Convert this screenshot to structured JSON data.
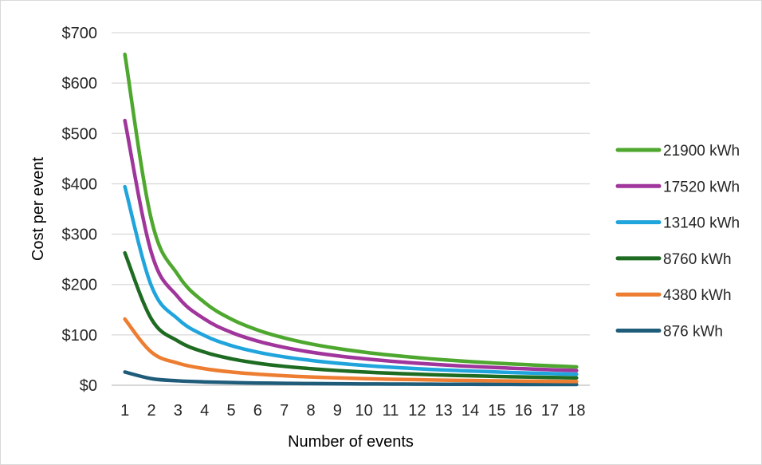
{
  "chart_data": {
    "type": "line",
    "title": "",
    "xlabel": "Number of events",
    "ylabel": "Cost per event",
    "x": [
      1,
      2,
      3,
      4,
      5,
      6,
      7,
      8,
      9,
      10,
      11,
      12,
      13,
      14,
      15,
      16,
      17,
      18
    ],
    "x_tick_labels": [
      "1",
      "2",
      "3",
      "4",
      "5",
      "6",
      "7",
      "8",
      "9",
      "10",
      "11",
      "12",
      "13",
      "14",
      "15",
      "16",
      "17",
      "18"
    ],
    "ylim": [
      0,
      700
    ],
    "y_ticks": [
      0,
      100,
      200,
      300,
      400,
      500,
      600,
      700
    ],
    "y_tick_labels": [
      "$0",
      "$100",
      "$200",
      "$300",
      "$400",
      "$500",
      "$600",
      "$700"
    ],
    "grid": true,
    "legend_position": "right",
    "series": [
      {
        "name": "21900 kWh",
        "color": "#4ea72e",
        "values": [
          657,
          328.5,
          219,
          164.3,
          131.4,
          109.5,
          93.9,
          82.1,
          73,
          65.7,
          59.7,
          54.8,
          50.5,
          46.9,
          43.8,
          41.1,
          38.6,
          36.5
        ]
      },
      {
        "name": "17520 kWh",
        "color": "#a0359c",
        "values": [
          525.6,
          262.8,
          175.2,
          131.4,
          105.1,
          87.6,
          75.1,
          65.7,
          58.4,
          52.6,
          47.8,
          43.8,
          40.4,
          37.5,
          35,
          32.9,
          30.9,
          29.2
        ]
      },
      {
        "name": "13140 kWh",
        "color": "#20a4dc",
        "values": [
          394.2,
          197.1,
          131.4,
          98.6,
          78.8,
          65.7,
          56.3,
          49.3,
          43.8,
          39.4,
          35.8,
          32.9,
          30.3,
          28.2,
          26.3,
          24.6,
          23.2,
          21.9
        ]
      },
      {
        "name": "8760 kWh",
        "color": "#1e6b22",
        "values": [
          262.8,
          131.4,
          87.6,
          65.7,
          52.6,
          43.8,
          37.5,
          32.9,
          29.2,
          26.3,
          23.9,
          21.9,
          20.2,
          18.8,
          17.5,
          16.4,
          15.5,
          14.6
        ]
      },
      {
        "name": "4380 kWh",
        "color": "#ed7d31",
        "values": [
          131.4,
          65.7,
          43.8,
          32.9,
          26.3,
          21.9,
          18.8,
          16.4,
          14.6,
          13.1,
          11.9,
          11,
          10.1,
          9.4,
          8.8,
          8.2,
          7.7,
          7.3
        ]
      },
      {
        "name": "876 kWh",
        "color": "#1f5c7a",
        "values": [
          26.3,
          13.1,
          8.8,
          6.6,
          5.3,
          4.4,
          3.8,
          3.3,
          2.9,
          2.6,
          2.4,
          2.2,
          2,
          1.9,
          1.8,
          1.6,
          1.5,
          1.5
        ]
      }
    ]
  }
}
